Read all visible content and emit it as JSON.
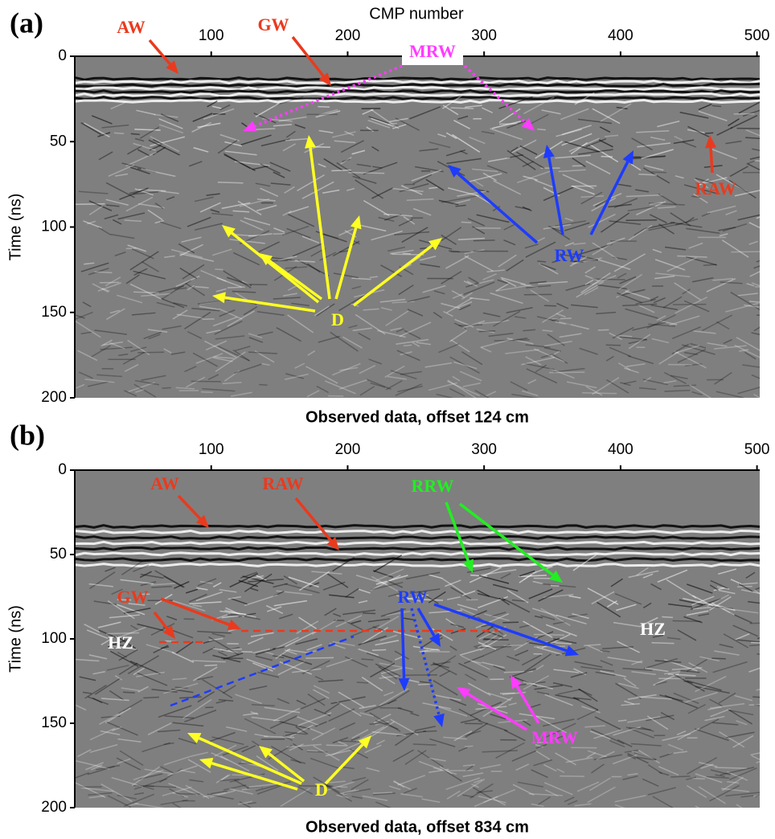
{
  "chart_data": [
    {
      "type": "image",
      "panel_label": "(a)",
      "title": "Observed data, offset 124 cm",
      "x_label": "CMP number",
      "y_label": "Time (ns)",
      "xlim": [
        0,
        502
      ],
      "xticks": [
        100,
        200,
        300,
        400,
        500
      ],
      "ylim": [
        0,
        200
      ],
      "yticks": [
        0,
        50,
        100,
        150,
        200
      ],
      "annotations": [
        {
          "text": "AW",
          "color": "#ea3a1e"
        },
        {
          "text": "GW",
          "color": "#ea3a1e"
        },
        {
          "text": "MRW",
          "color": "#ff3cff"
        },
        {
          "text": "D",
          "color": "#ffff22"
        },
        {
          "text": "RW",
          "color": "#1e3cff"
        },
        {
          "text": "RAW",
          "color": "#ea3a1e"
        }
      ]
    },
    {
      "type": "image",
      "panel_label": "(b)",
      "title": "Observed data, offset 834 cm",
      "y_label": "Time (ns)",
      "xlim": [
        0,
        502
      ],
      "xticks": [
        100,
        200,
        300,
        400,
        500
      ],
      "ylim": [
        0,
        200
      ],
      "yticks": [
        0,
        50,
        100,
        150,
        200
      ],
      "annotations": [
        {
          "text": "AW",
          "color": "#ea3a1e"
        },
        {
          "text": "RAW",
          "color": "#ea3a1e"
        },
        {
          "text": "RRW",
          "color": "#22ee22"
        },
        {
          "text": "GW",
          "color": "#ea3a1e"
        },
        {
          "text": "HZ",
          "color": "#ffffff"
        },
        {
          "text": "HZ",
          "color": "#ffffff"
        },
        {
          "text": "RW",
          "color": "#1e3cff"
        },
        {
          "text": "MRW",
          "color": "#ff3cff"
        },
        {
          "text": "D",
          "color": "#ffff22"
        }
      ]
    }
  ]
}
